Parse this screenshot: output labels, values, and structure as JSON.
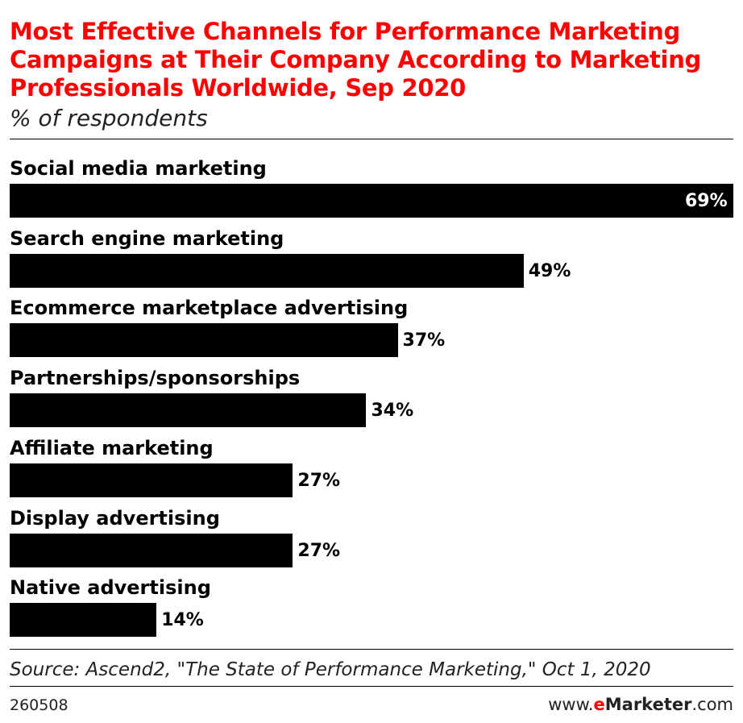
{
  "chart_data": {
    "type": "bar",
    "orientation": "horizontal",
    "title": "Most Effective Channels for Performance Marketing Campaigns at Their Company According to Marketing Professionals Worldwide, Sep 2020",
    "subtitle": "% of respondents",
    "categories": [
      "Social media marketing",
      "Search engine marketing",
      "Ecommerce marketplace advertising",
      "Partnerships/sponsorships",
      "Affiliate marketing",
      "Display advertising",
      "Native advertising"
    ],
    "values": [
      69,
      49,
      37,
      34,
      27,
      27,
      14
    ],
    "value_labels": [
      "69%",
      "49%",
      "37%",
      "34%",
      "27%",
      "27%",
      "14%"
    ],
    "xlim": [
      0,
      69
    ],
    "grid": false,
    "colors": {
      "bar": "#000000",
      "title": "#ff0000"
    }
  },
  "footer": {
    "source": "Source: Ascend2, \"The State of Performance Marketing,\" Oct 1, 2020",
    "chart_id": "260508",
    "brand_prefix": "www.",
    "brand_main": "eMarketer",
    "brand_suffix": ".com"
  }
}
